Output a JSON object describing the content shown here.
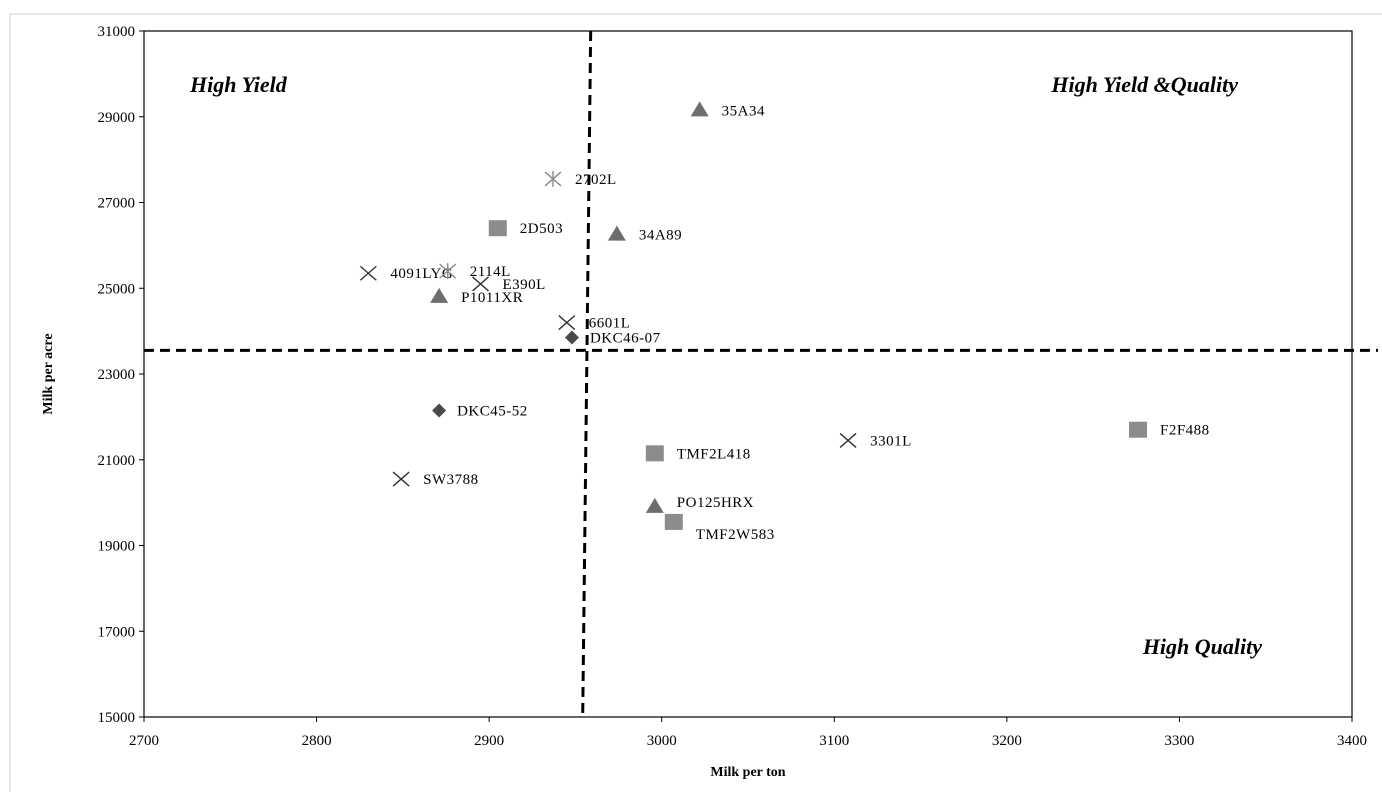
{
  "chart_data": {
    "type": "scatter",
    "title": "",
    "xlabel": "Milk per ton",
    "ylabel": "Milk per acre",
    "xlim": [
      2700,
      3400
    ],
    "ylim": [
      15000,
      31000
    ],
    "x_ticks": [
      2700,
      2800,
      2900,
      3000,
      3100,
      3200,
      3300,
      3400
    ],
    "y_ticks": [
      15000,
      17000,
      19000,
      21000,
      23000,
      25000,
      27000,
      29000,
      31000
    ],
    "grid": false,
    "legend": "none",
    "reference_lines": [
      {
        "orientation": "vertical",
        "style": "dashed",
        "value": 2960
      },
      {
        "orientation": "horizontal",
        "style": "dashed",
        "value": 23550
      }
    ],
    "quadrant_labels": [
      {
        "text": "High Yield",
        "quadrant": "top-left"
      },
      {
        "text": "High Yield &Quality",
        "quadrant": "top-right"
      },
      {
        "text": "High Quality",
        "quadrant": "bottom-right"
      }
    ],
    "points": [
      {
        "label": "35A34",
        "x": 3022,
        "y": 29150,
        "marker": "triangle"
      },
      {
        "label": "2702L",
        "x": 2937,
        "y": 27550,
        "marker": "asterisk"
      },
      {
        "label": "2D503",
        "x": 2905,
        "y": 26400,
        "marker": "square"
      },
      {
        "label": "34A89",
        "x": 2974,
        "y": 26250,
        "marker": "triangle"
      },
      {
        "label": "4091LYG",
        "x": 2830,
        "y": 25350,
        "marker": "x"
      },
      {
        "label": "2114L",
        "x": 2876,
        "y": 25400,
        "marker": "asterisk"
      },
      {
        "label": "E390L",
        "x": 2895,
        "y": 25100,
        "marker": "x"
      },
      {
        "label": "P1011XR",
        "x": 2871,
        "y": 24800,
        "marker": "triangle"
      },
      {
        "label": "6601L",
        "x": 2945,
        "y": 24200,
        "marker": "x"
      },
      {
        "label": "DKC46-07",
        "x": 2948,
        "y": 23850,
        "marker": "diamond"
      },
      {
        "label": "DKC45-52",
        "x": 2871,
        "y": 22150,
        "marker": "diamond"
      },
      {
        "label": "3301L",
        "x": 3108,
        "y": 21450,
        "marker": "x"
      },
      {
        "label": "F2F488",
        "x": 3276,
        "y": 21700,
        "marker": "square"
      },
      {
        "label": "TMF2L418",
        "x": 2996,
        "y": 21150,
        "marker": "square"
      },
      {
        "label": "SW3788",
        "x": 2849,
        "y": 20550,
        "marker": "x"
      },
      {
        "label": "PO125HRX",
        "x": 2996,
        "y": 19900,
        "marker": "triangle"
      },
      {
        "label": "TMF2W583",
        "x": 3007,
        "y": 19550,
        "marker": "square"
      }
    ],
    "marker_colors": {
      "triangle": "#6e6e6e",
      "square": "#8c8c8c",
      "diamond": "#4a4a4a",
      "x": "#333333",
      "asterisk": "#8a8a8a"
    }
  }
}
